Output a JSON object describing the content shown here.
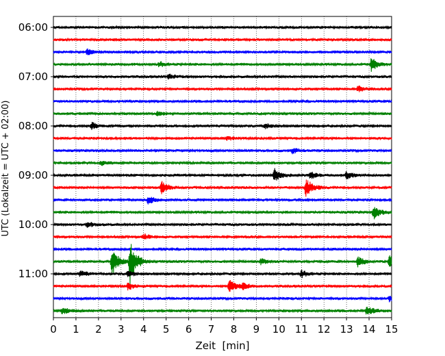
{
  "chart_data": {
    "type": "line",
    "subtype": "helicorder",
    "xlabel": "Zeit  [min]",
    "ylabel": "UTC (Lokalzeit = UTC + 02:00)",
    "xlim": [
      0,
      15
    ],
    "x_ticks": [
      0,
      1,
      2,
      3,
      4,
      5,
      6,
      7,
      8,
      9,
      10,
      11,
      12,
      13,
      14,
      15
    ],
    "x_tick_labels": [
      "0",
      "1",
      "2",
      "3",
      "4",
      "5",
      "6",
      "7",
      "8",
      "9",
      "10",
      "11",
      "12",
      "13",
      "14",
      "15"
    ],
    "y_tick_labels": [
      "06:00",
      "07:00",
      "08:00",
      "09:00",
      "10:00",
      "11:00"
    ],
    "y_tick_trace_index": [
      0,
      4,
      8,
      12,
      16,
      20
    ],
    "trace_minutes": 15,
    "color_cycle": [
      "#000000",
      "#ff0000",
      "#0000ff",
      "#008000"
    ],
    "trace_count": 24,
    "grid": "vertical dotted",
    "events": [
      {
        "trace": 2,
        "minute": 1.5,
        "amp": 1.2
      },
      {
        "trace": 3,
        "minute": 4.7,
        "amp": 0.9
      },
      {
        "trace": 3,
        "minute": 14.1,
        "amp": 2.6
      },
      {
        "trace": 4,
        "minute": 5.1,
        "amp": 1.0
      },
      {
        "trace": 5,
        "minute": 13.5,
        "amp": 1.2
      },
      {
        "trace": 7,
        "minute": 4.6,
        "amp": 0.9
      },
      {
        "trace": 8,
        "minute": 1.7,
        "amp": 1.3
      },
      {
        "trace": 8,
        "minute": 9.4,
        "amp": 0.8
      },
      {
        "trace": 9,
        "minute": 7.7,
        "amp": 0.6
      },
      {
        "trace": 10,
        "minute": 10.6,
        "amp": 0.9
      },
      {
        "trace": 11,
        "minute": 2.1,
        "amp": 0.8
      },
      {
        "trace": 12,
        "minute": 9.8,
        "amp": 2.4
      },
      {
        "trace": 12,
        "minute": 11.4,
        "amp": 1.2
      },
      {
        "trace": 12,
        "minute": 13.0,
        "amp": 1.3
      },
      {
        "trace": 13,
        "minute": 4.8,
        "amp": 2.2
      },
      {
        "trace": 13,
        "minute": 11.2,
        "amp": 3.6
      },
      {
        "trace": 14,
        "minute": 4.2,
        "amp": 1.4
      },
      {
        "trace": 15,
        "minute": 14.2,
        "amp": 2.8
      },
      {
        "trace": 16,
        "minute": 1.5,
        "amp": 1.0
      },
      {
        "trace": 17,
        "minute": 4.0,
        "amp": 1.0
      },
      {
        "trace": 19,
        "minute": 2.6,
        "amp": 5.0
      },
      {
        "trace": 19,
        "minute": 3.4,
        "amp": 8.0
      },
      {
        "trace": 19,
        "minute": 9.2,
        "amp": 1.0
      },
      {
        "trace": 19,
        "minute": 13.5,
        "amp": 1.8
      },
      {
        "trace": 19,
        "minute": 14.9,
        "amp": 2.6
      },
      {
        "trace": 20,
        "minute": 1.2,
        "amp": 1.0
      },
      {
        "trace": 20,
        "minute": 3.3,
        "amp": 1.0
      },
      {
        "trace": 20,
        "minute": 11.0,
        "amp": 1.2
      },
      {
        "trace": 21,
        "minute": 3.3,
        "amp": 1.3
      },
      {
        "trace": 21,
        "minute": 7.8,
        "amp": 2.5
      },
      {
        "trace": 21,
        "minute": 8.4,
        "amp": 1.0
      },
      {
        "trace": 22,
        "minute": 14.9,
        "amp": 1.0
      },
      {
        "trace": 23,
        "minute": 0.4,
        "amp": 1.2
      },
      {
        "trace": 23,
        "minute": 13.9,
        "amp": 1.6
      }
    ]
  }
}
